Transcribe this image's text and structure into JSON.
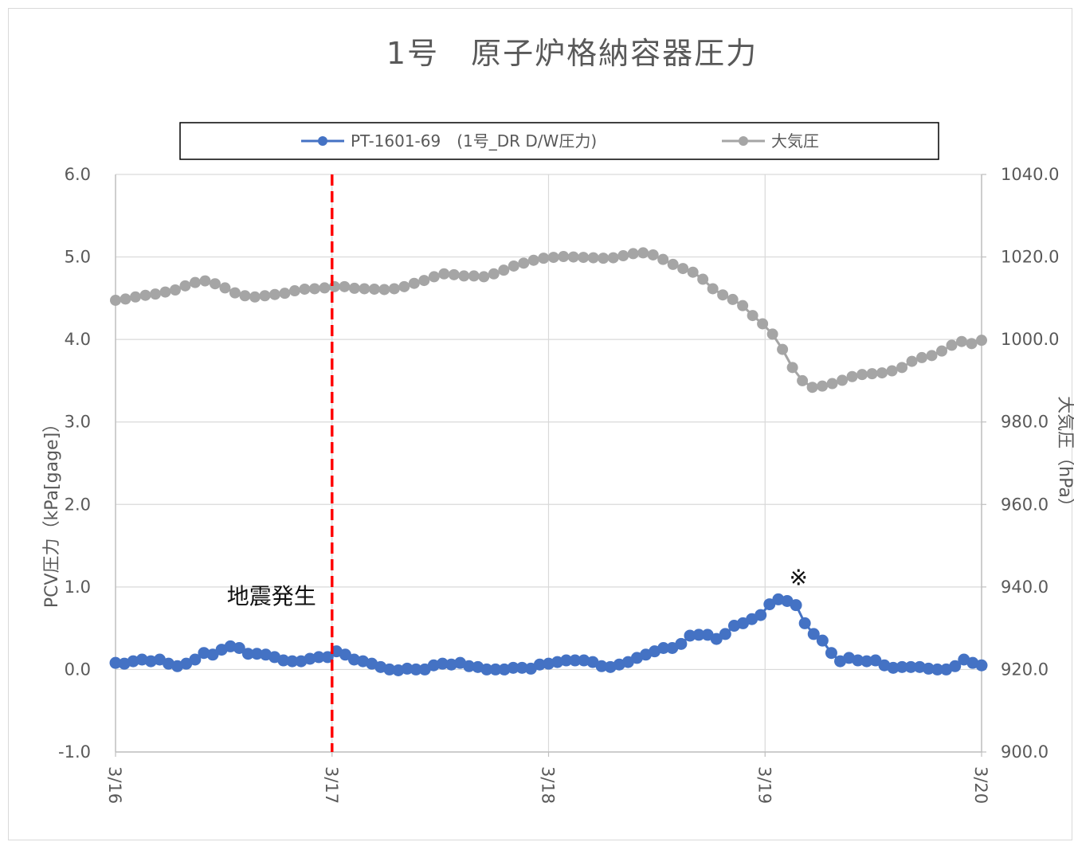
{
  "chart_data": {
    "type": "line",
    "title": "1号　原子炉格納容器圧力",
    "x_range": [
      "3/16",
      "3/20"
    ],
    "x_ticks": [
      "3/16",
      "3/17",
      "3/18",
      "3/19",
      "3/20"
    ],
    "grid": true,
    "legend_placement": "top",
    "y_left": {
      "label": "PCV圧力（kPa[gage]）",
      "range": [
        -1.0,
        6.0
      ],
      "ticks": [
        "-1.0",
        "0.0",
        "1.0",
        "2.0",
        "3.0",
        "4.0",
        "5.0",
        "6.0"
      ]
    },
    "y_right": {
      "label": "大気圧（hPa）",
      "range": [
        900.0,
        1040.0
      ],
      "ticks": [
        "900.0",
        "920.0",
        "940.0",
        "960.0",
        "980.0",
        "1000.0",
        "1020.0",
        "1040.0"
      ]
    },
    "series": [
      {
        "name": "PT-1601-69　(1号_DR D/W圧力)",
        "axis": "left",
        "color": "#4472c4",
        "values": [
          0.08,
          0.07,
          0.1,
          0.12,
          0.1,
          0.12,
          0.07,
          0.04,
          0.07,
          0.12,
          0.2,
          0.18,
          0.24,
          0.28,
          0.26,
          0.19,
          0.19,
          0.18,
          0.15,
          0.11,
          0.1,
          0.1,
          0.13,
          0.15,
          0.15,
          0.22,
          0.18,
          0.12,
          0.1,
          0.07,
          0.03,
          0.0,
          -0.01,
          0.01,
          0.0,
          0.0,
          0.05,
          0.07,
          0.06,
          0.08,
          0.04,
          0.03,
          0.0,
          0.0,
          0.0,
          0.02,
          0.02,
          0.01,
          0.06,
          0.07,
          0.09,
          0.11,
          0.11,
          0.11,
          0.09,
          0.04,
          0.03,
          0.06,
          0.09,
          0.14,
          0.18,
          0.22,
          0.26,
          0.26,
          0.31,
          0.41,
          0.42,
          0.42,
          0.37,
          0.43,
          0.53,
          0.56,
          0.61,
          0.66,
          0.79,
          0.85,
          0.83,
          0.78,
          0.56,
          0.43,
          0.35,
          0.2,
          0.1,
          0.14,
          0.11,
          0.1,
          0.11,
          0.05,
          0.02,
          0.03,
          0.03,
          0.03,
          0.01,
          0.0,
          0.0,
          0.04,
          0.12,
          0.08,
          0.05
        ]
      },
      {
        "name": "大気圧",
        "axis": "right",
        "color": "#a5a5a5",
        "values": [
          1009.5,
          1009.8,
          1010.3,
          1010.7,
          1011.0,
          1011.5,
          1012.0,
          1013.0,
          1013.8,
          1014.2,
          1013.5,
          1012.5,
          1011.3,
          1010.6,
          1010.3,
          1010.6,
          1010.9,
          1011.2,
          1011.8,
          1012.2,
          1012.3,
          1012.5,
          1012.8,
          1012.8,
          1012.4,
          1012.3,
          1012.2,
          1012.1,
          1012.3,
          1012.8,
          1013.6,
          1014.3,
          1015.2,
          1015.9,
          1015.7,
          1015.4,
          1015.4,
          1015.2,
          1015.9,
          1016.8,
          1017.8,
          1018.5,
          1019.2,
          1019.7,
          1019.9,
          1020.1,
          1020.0,
          1019.9,
          1019.8,
          1019.7,
          1019.8,
          1020.3,
          1020.8,
          1021.0,
          1020.5,
          1019.4,
          1018.2,
          1017.2,
          1016.3,
          1014.6,
          1012.3,
          1010.8,
          1009.7,
          1008.2,
          1005.8,
          1003.8,
          1001.3,
          997.6,
          993.2,
          990.0,
          988.4,
          988.7,
          989.3,
          990.1,
          991.0,
          991.5,
          991.7,
          991.9,
          992.4,
          993.2,
          994.7,
          995.6,
          996.1,
          997.2,
          998.6,
          999.5,
          999.0,
          999.8
        ]
      }
    ],
    "events": [
      {
        "label": "地震発生",
        "x": "3/17",
        "color": "#ff0000"
      }
    ],
    "annotations": [
      {
        "text": "※",
        "x": "3/19",
        "y": 0.85
      }
    ]
  }
}
